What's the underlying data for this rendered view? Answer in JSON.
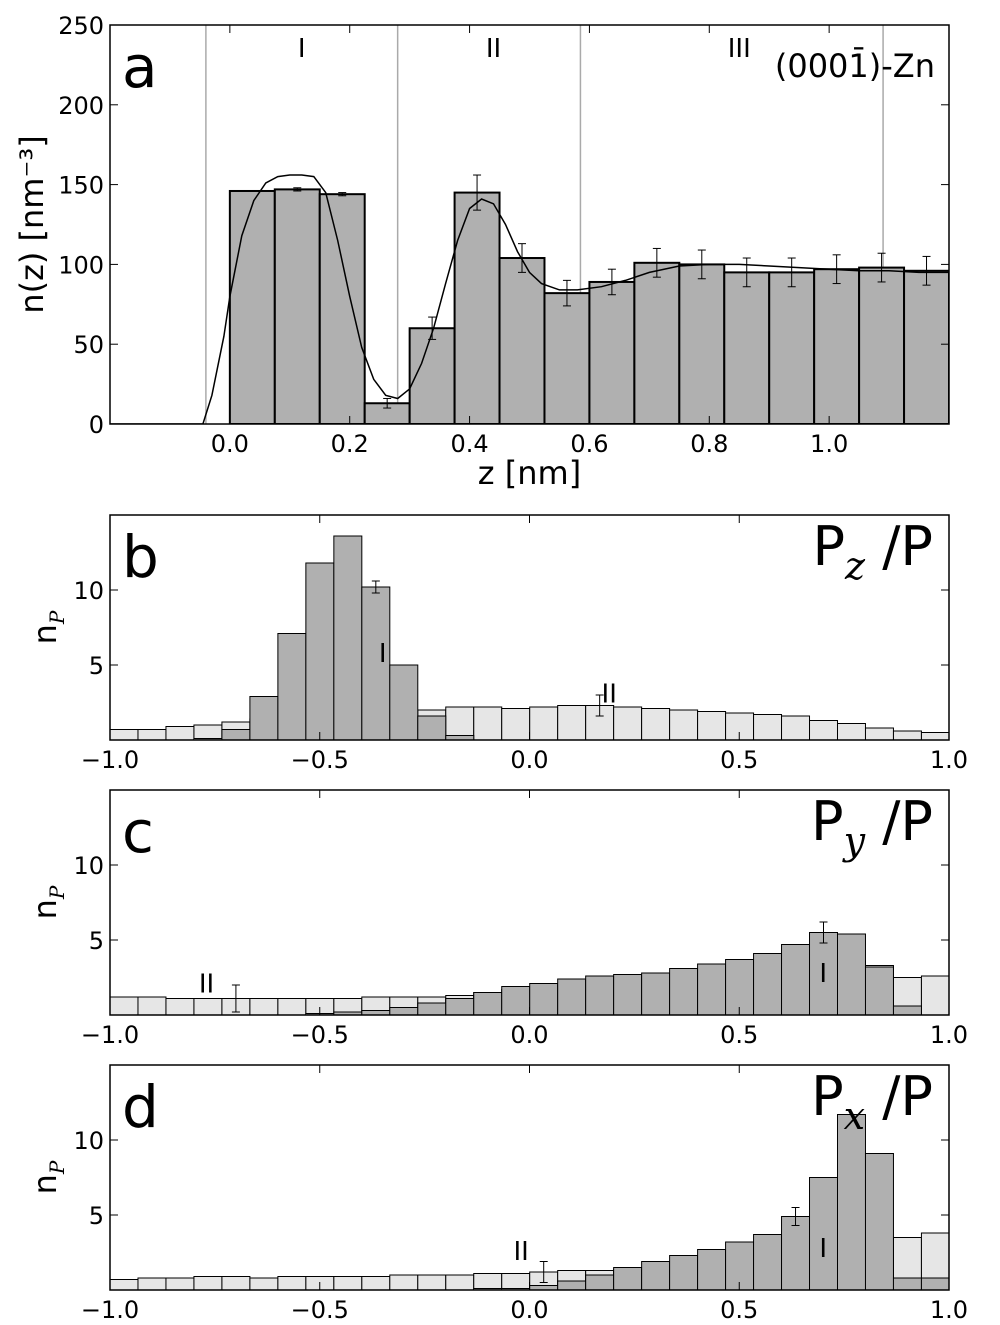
{
  "colors": {
    "bar_dark": "#b0b0b0",
    "bar_light": "#e6e6e6",
    "edge": "#000000",
    "vline": "#aaaaaa"
  },
  "chart_data": [
    {
      "id": "a",
      "type": "bar",
      "panel_label": "a",
      "title": "(0001̄)-Zn",
      "xlabel": "z [nm]",
      "ylabel": "n(z) [nm⁻³]",
      "xlim": [
        -0.2,
        1.2
      ],
      "ylim": [
        0,
        250
      ],
      "xticks": [
        0.0,
        0.2,
        0.4,
        0.6,
        0.8,
        1.0
      ],
      "xtick_labels": [
        "0.0",
        "0.2",
        "0.4",
        "0.6",
        "0.8",
        "1.0"
      ],
      "yticks": [
        0,
        50,
        100,
        150,
        200,
        250
      ],
      "ytick_labels": [
        "0",
        "50",
        "100",
        "150",
        "200",
        "250"
      ],
      "bin_width": 0.075,
      "bins": [
        {
          "x": 0.0,
          "value": 146,
          "err": 0
        },
        {
          "x": 0.075,
          "value": 147,
          "err": 1
        },
        {
          "x": 0.15,
          "value": 144,
          "err": 1
        },
        {
          "x": 0.225,
          "value": 13,
          "err": 3
        },
        {
          "x": 0.3,
          "value": 60,
          "err": 7
        },
        {
          "x": 0.375,
          "value": 145,
          "err": 11
        },
        {
          "x": 0.45,
          "value": 104,
          "err": 9
        },
        {
          "x": 0.525,
          "value": 82,
          "err": 8
        },
        {
          "x": 0.6,
          "value": 89,
          "err": 8
        },
        {
          "x": 0.675,
          "value": 101,
          "err": 9
        },
        {
          "x": 0.75,
          "value": 100,
          "err": 9
        },
        {
          "x": 0.825,
          "value": 95,
          "err": 9
        },
        {
          "x": 0.9,
          "value": 95,
          "err": 9
        },
        {
          "x": 0.975,
          "value": 97,
          "err": 9
        },
        {
          "x": 1.05,
          "value": 98,
          "err": 9
        },
        {
          "x": 1.125,
          "value": 96,
          "err": 9
        }
      ],
      "curve": {
        "x": [
          -0.2,
          -0.1,
          -0.045,
          -0.03,
          -0.01,
          0.0,
          0.02,
          0.04,
          0.06,
          0.08,
          0.1,
          0.12,
          0.14,
          0.16,
          0.18,
          0.2,
          0.22,
          0.24,
          0.26,
          0.28,
          0.3,
          0.32,
          0.34,
          0.36,
          0.38,
          0.4,
          0.42,
          0.44,
          0.46,
          0.48,
          0.5,
          0.52,
          0.55,
          0.58,
          0.62,
          0.66,
          0.7,
          0.75,
          0.8,
          0.85,
          0.9,
          0.95,
          1.0,
          1.05,
          1.1,
          1.15,
          1.2
        ],
        "y": [
          0,
          0,
          0,
          18,
          55,
          80,
          118,
          140,
          151,
          155,
          156,
          156,
          155,
          145,
          115,
          80,
          48,
          28,
          18,
          16,
          22,
          38,
          60,
          88,
          115,
          135,
          141,
          138,
          125,
          108,
          95,
          88,
          84,
          84,
          86,
          90,
          95,
          99,
          100,
          100,
          99,
          98,
          97,
          96,
          96,
          95,
          95
        ]
      },
      "vlines": [
        -0.04,
        0.28,
        0.585,
        1.09
      ],
      "regions": [
        {
          "label": "I",
          "x": 0.12,
          "y": 230
        },
        {
          "label": "II",
          "x": 0.44,
          "y": 230
        },
        {
          "label": "III",
          "x": 0.85,
          "y": 230
        }
      ]
    },
    {
      "id": "b",
      "type": "bar",
      "panel_label": "b",
      "title_main": "P",
      "title_sub": "z",
      "title_rest": " /P",
      "ylabel_main": "n",
      "ylabel_sub": "P",
      "xlim": [
        -1.0,
        1.0
      ],
      "ylim": [
        0,
        15
      ],
      "xticks": [
        -1.0,
        -0.5,
        0.0,
        0.5,
        1.0
      ],
      "xtick_labels": [
        "−1.0",
        "−0.5",
        "0.0",
        "0.5",
        "1.0"
      ],
      "yticks": [
        5,
        10
      ],
      "ytick_labels": [
        "5",
        "10"
      ],
      "bin_width": 0.0667,
      "series": [
        {
          "name": "II",
          "style": "light",
          "values": [
            0.7,
            0.7,
            0.9,
            1.0,
            1.2,
            1.4,
            1.5,
            1.6,
            1.7,
            1.8,
            1.9,
            2.0,
            2.2,
            2.2,
            2.1,
            2.2,
            2.3,
            2.3,
            2.2,
            2.1,
            2.0,
            1.9,
            1.8,
            1.7,
            1.6,
            1.3,
            1.1,
            0.8,
            0.6,
            0.5
          ],
          "err_index": 17,
          "err": 0.7
        },
        {
          "name": "I",
          "style": "dark",
          "values": [
            0,
            0,
            0,
            0.1,
            0.7,
            2.9,
            7.1,
            11.8,
            13.6,
            10.2,
            5.0,
            1.6,
            0.3,
            0,
            0,
            0,
            0,
            0,
            0,
            0,
            0,
            0,
            0,
            0,
            0,
            0,
            0,
            0,
            0,
            0
          ],
          "err_index": 9,
          "err": 0.4
        }
      ],
      "regions": [
        {
          "label": "I",
          "x": -0.35,
          "y": 5.2
        },
        {
          "label": "II",
          "x": 0.19,
          "y": 2.5
        }
      ]
    },
    {
      "id": "c",
      "type": "bar",
      "panel_label": "c",
      "title_main": "P",
      "title_sub": "y",
      "title_rest": " /P",
      "ylabel_main": "n",
      "ylabel_sub": "P",
      "xlim": [
        -1.0,
        1.0
      ],
      "ylim": [
        0,
        15
      ],
      "xticks": [
        -1.0,
        -0.5,
        0.0,
        0.5,
        1.0
      ],
      "xtick_labels": [
        "−1.0",
        "−0.5",
        "0.0",
        "0.5",
        "1.0"
      ],
      "yticks": [
        5,
        10
      ],
      "ytick_labels": [
        "5",
        "10"
      ],
      "bin_width": 0.0667,
      "series": [
        {
          "name": "II",
          "style": "light",
          "values": [
            1.2,
            1.2,
            1.1,
            1.1,
            1.1,
            1.1,
            1.1,
            1.1,
            1.1,
            1.2,
            1.2,
            1.2,
            1.3,
            1.5,
            1.7,
            1.9,
            2.1,
            2.3,
            2.5,
            2.6,
            2.7,
            2.9,
            3.1,
            3.3,
            3.5,
            3.7,
            3.6,
            3.3,
            2.5,
            2.6
          ],
          "err_index": 4,
          "err": 0.9
        },
        {
          "name": "I",
          "style": "dark",
          "values": [
            0,
            0,
            0,
            0,
            0,
            0,
            0,
            0.1,
            0.2,
            0.3,
            0.5,
            0.8,
            1.1,
            1.5,
            1.9,
            2.1,
            2.4,
            2.6,
            2.7,
            2.8,
            3.1,
            3.4,
            3.7,
            4.1,
            4.7,
            5.5,
            5.4,
            3.2,
            0.6,
            0
          ],
          "err_index": 25,
          "err": 0.7
        }
      ],
      "regions": [
        {
          "label": "I",
          "x": 0.7,
          "y": 2.2
        },
        {
          "label": "II",
          "x": -0.77,
          "y": 1.5
        }
      ]
    },
    {
      "id": "d",
      "type": "bar",
      "panel_label": "d",
      "title_main": "P",
      "title_sub": "x",
      "title_rest": " /P",
      "ylabel_main": "n",
      "ylabel_sub": "P",
      "xlim": [
        -1.0,
        1.0
      ],
      "ylim": [
        0,
        15
      ],
      "xticks": [
        -1.0,
        -0.5,
        0.0,
        0.5,
        1.0
      ],
      "xtick_labels": [
        "−1.0",
        "−0.5",
        "0.0",
        "0.5",
        "1.0"
      ],
      "yticks": [
        5,
        10
      ],
      "ytick_labels": [
        "5",
        "10"
      ],
      "bin_width": 0.0667,
      "series": [
        {
          "name": "II",
          "style": "light",
          "values": [
            0.7,
            0.8,
            0.8,
            0.9,
            0.9,
            0.8,
            0.9,
            0.9,
            0.9,
            0.9,
            1.0,
            1.0,
            1.0,
            1.1,
            1.1,
            1.2,
            1.3,
            1.3,
            1.4,
            1.5,
            1.6,
            1.7,
            1.9,
            2.1,
            2.3,
            2.5,
            2.8,
            3.1,
            3.5,
            3.8
          ],
          "err_index": 15,
          "err": 0.7
        },
        {
          "name": "I",
          "style": "dark",
          "values": [
            0,
            0,
            0,
            0,
            0,
            0,
            0,
            0,
            0,
            0,
            0,
            0,
            0,
            0.1,
            0.1,
            0.3,
            0.6,
            1.0,
            1.5,
            1.9,
            2.3,
            2.7,
            3.2,
            3.7,
            4.9,
            7.5,
            11.7,
            9.1,
            0.8,
            0.8
          ],
          "err_index": 24,
          "err": 0.6
        }
      ],
      "regions": [
        {
          "label": "I",
          "x": 0.7,
          "y": 2.2
        },
        {
          "label": "II",
          "x": -0.02,
          "y": 2.0
        }
      ]
    }
  ]
}
